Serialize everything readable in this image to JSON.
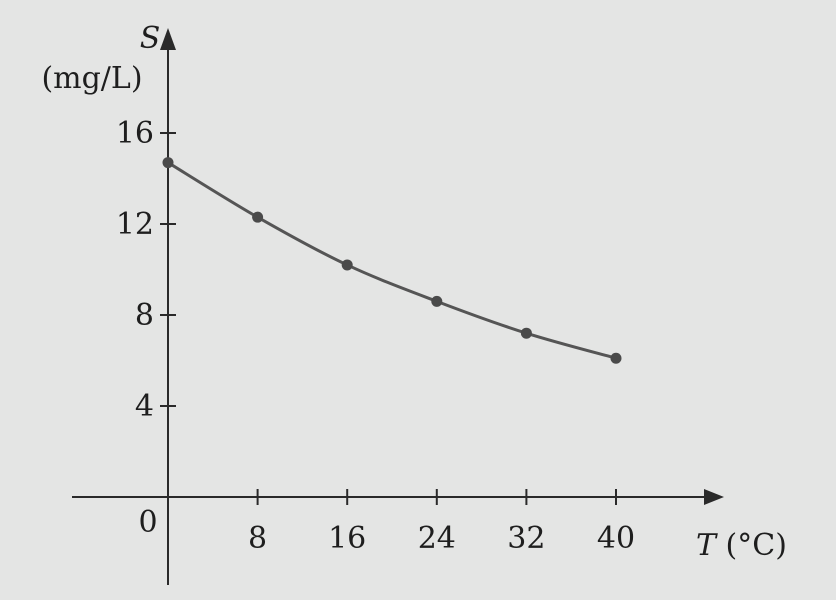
{
  "chart_data": {
    "type": "line",
    "x": [
      0,
      8,
      16,
      24,
      32,
      40
    ],
    "series": [
      {
        "values": [
          14.7,
          12.3,
          10.2,
          8.6,
          7.2,
          6.1
        ]
      }
    ],
    "xlabel": {
      "var": "T",
      "unit": " (°C)"
    },
    "ylabel": {
      "var": "S",
      "unit": "(mg/L)"
    },
    "origin_label": "0",
    "xticks": [
      8,
      16,
      24,
      32,
      40
    ],
    "yticks": [
      4,
      8,
      12,
      16
    ],
    "xlim": [
      0,
      40
    ],
    "ylim": [
      0,
      16
    ],
    "grid": false,
    "colors": {
      "line": "#555555",
      "point": "#4a4a4a",
      "axis": "#2a2a2a",
      "background": "#e4e5e4"
    }
  }
}
